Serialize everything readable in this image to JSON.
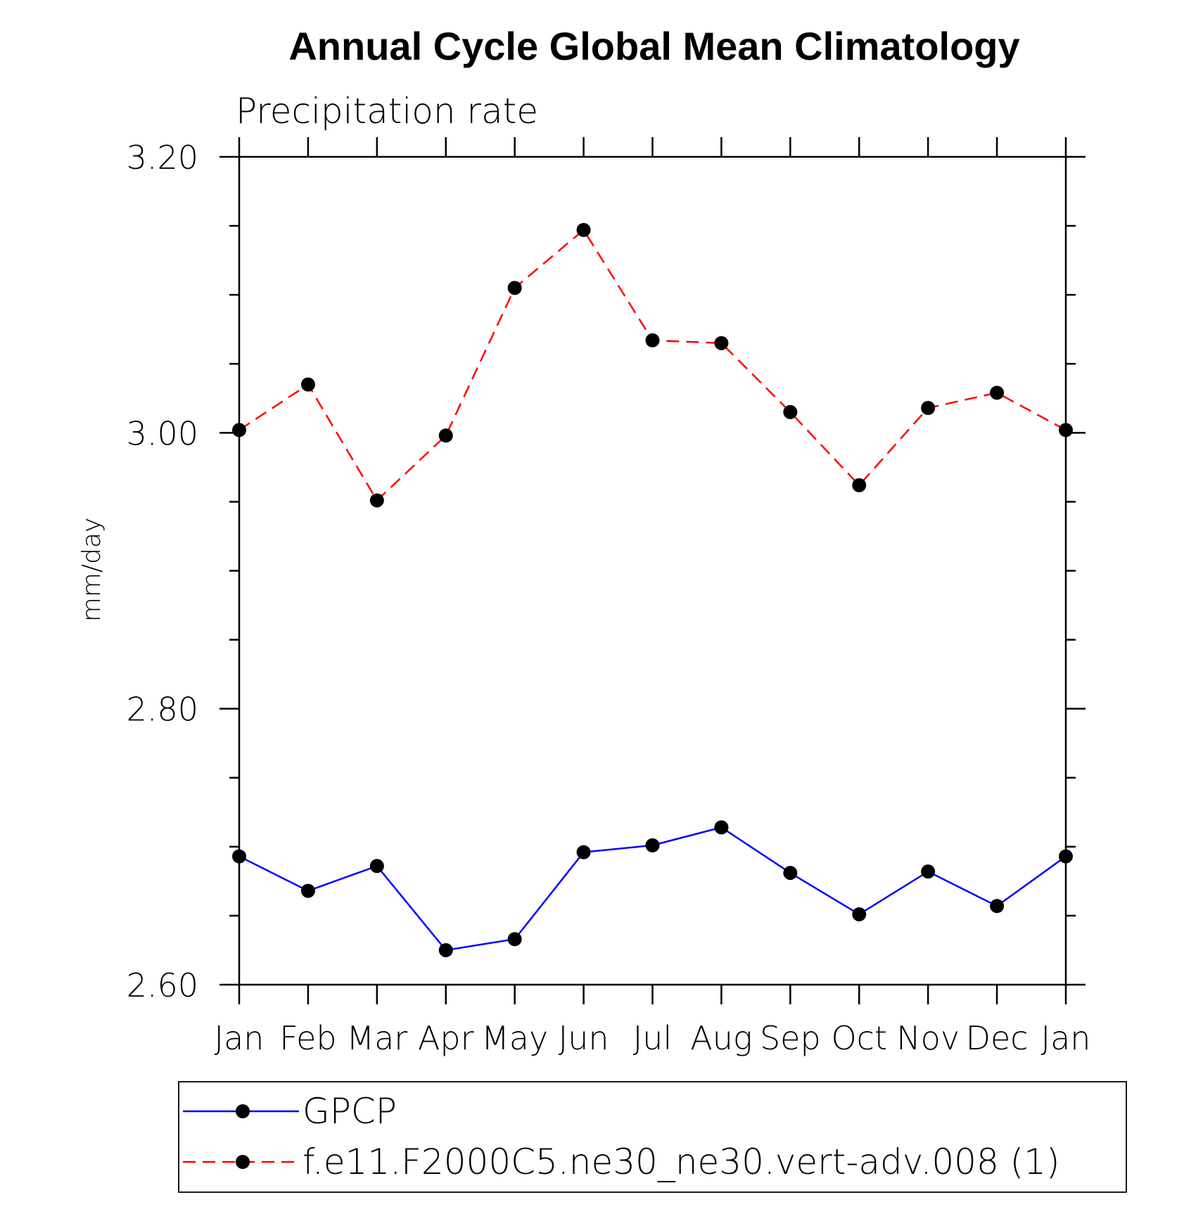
{
  "chart_data": {
    "type": "line",
    "title": "Annual Cycle Global Mean Climatology",
    "subtitle": "Precipitation rate",
    "xlabel": "",
    "ylabel": "mm/day",
    "categories": [
      "Jan",
      "Feb",
      "Mar",
      "Apr",
      "May",
      "Jun",
      "Jul",
      "Aug",
      "Sep",
      "Oct",
      "Nov",
      "Dec",
      "Jan"
    ],
    "ylim": [
      2.6,
      3.2
    ],
    "yticks": [
      2.6,
      2.8,
      3.0,
      3.2
    ],
    "ytick_labels": [
      "2.60",
      "2.80",
      "3.00",
      "3.20"
    ],
    "y_minor_step": 0.05,
    "grid": false,
    "legend_position": "bottom",
    "series": [
      {
        "name": "GPCP",
        "color": "#0000ff",
        "dash": "solid",
        "marker": "filled-circle",
        "values": [
          2.693,
          2.668,
          2.686,
          2.625,
          2.633,
          2.696,
          2.701,
          2.714,
          2.681,
          2.651,
          2.682,
          2.657,
          2.693
        ]
      },
      {
        "name": "f.e11.F2000C5.ne30_ne30.vert-adv.008 (1)",
        "color": "#ff0000",
        "dash": "dashed",
        "marker": "filled-circle",
        "values": [
          3.002,
          3.035,
          2.951,
          2.998,
          3.105,
          3.147,
          3.067,
          3.065,
          3.015,
          2.962,
          3.018,
          3.029,
          3.002
        ]
      }
    ]
  }
}
